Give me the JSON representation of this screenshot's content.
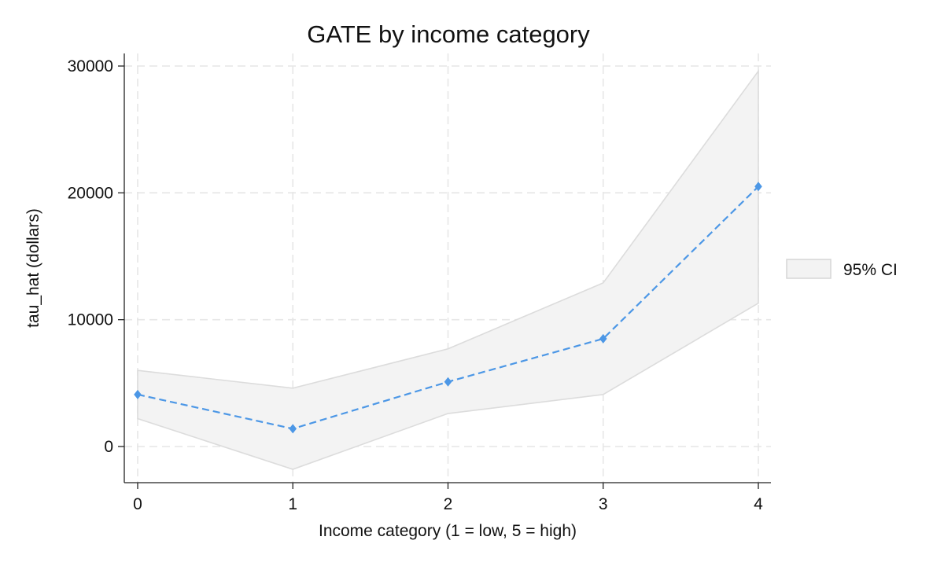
{
  "chart_data": {
    "type": "line",
    "title": "GATE by income category",
    "xlabel": "Income category (1 = low, 5 = high)",
    "ylabel": "tau_hat (dollars)",
    "x": [
      0,
      1,
      2,
      3,
      4
    ],
    "x_ticks": [
      "0",
      "1",
      "2",
      "3",
      "4"
    ],
    "y_ticks": [
      0,
      10000,
      20000,
      30000
    ],
    "xlim": [
      -0.08,
      4.08
    ],
    "ylim": [
      -2800,
      31000
    ],
    "grid": true,
    "legend_position": "right",
    "series": [
      {
        "values": [
          4100,
          1400,
          5100,
          8500,
          20500
        ],
        "color": "#4c97e6",
        "style": "dashed",
        "marker": "diamond"
      }
    ],
    "confidence_band": {
      "name": "95% CI",
      "lower": [
        2200,
        -1800,
        2600,
        4100,
        11300
      ],
      "upper": [
        6000,
        4600,
        7700,
        12900,
        29600
      ],
      "fill_color": "#f3f3f3",
      "edge_color": "#dcdcdc"
    }
  }
}
